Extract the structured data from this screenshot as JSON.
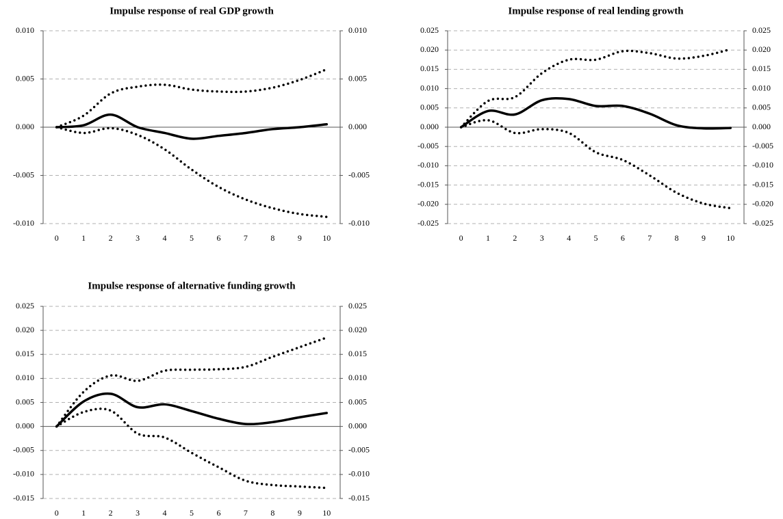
{
  "chart_data": [
    {
      "type": "line",
      "title": "Impulse response of real GDP growth",
      "x": [
        0,
        1,
        2,
        3,
        4,
        5,
        6,
        7,
        8,
        9,
        10
      ],
      "xlim": [
        -0.5,
        10.5
      ],
      "xticks": [
        0,
        1,
        2,
        3,
        4,
        5,
        6,
        7,
        8,
        9,
        10
      ],
      "ylim": [
        -0.01,
        0.01
      ],
      "yticks": [
        {
          "value": -0.01,
          "label": "-0.010"
        },
        {
          "value": -0.005,
          "label": "-0.005"
        },
        {
          "value": 0,
          "label": "0.000"
        },
        {
          "value": 0.005,
          "label": "0.005"
        },
        {
          "value": 0.01,
          "label": "0.010"
        }
      ],
      "y2lim": [
        -0.01,
        0.01
      ],
      "y2ticks": [
        {
          "value": -0.01,
          "label": "-0.010"
        },
        {
          "value": -0.005,
          "label": "-0.005"
        },
        {
          "value": 0,
          "label": "0.000"
        },
        {
          "value": 0.005,
          "label": "0.005"
        },
        {
          "value": 0.01,
          "label": "0.010"
        }
      ],
      "grid": true,
      "series": [
        {
          "color": "#000000",
          "style": "solid",
          "values": [
            0,
            0.0002,
            0.0013,
            0.0,
            -0.0006,
            -0.0012,
            -0.0009,
            -0.0006,
            -0.0002,
            0.0,
            0.0003
          ]
        },
        {
          "color": "#000000",
          "style": "dotted",
          "values": [
            0,
            0.0012,
            0.0035,
            0.0042,
            0.0044,
            0.0039,
            0.0037,
            0.0037,
            0.0041,
            0.0049,
            0.006
          ]
        },
        {
          "color": "#000000",
          "style": "dotted",
          "values": [
            0,
            -0.0006,
            -0.0001,
            -0.0008,
            -0.0023,
            -0.0044,
            -0.0062,
            -0.0075,
            -0.0084,
            -0.009,
            -0.0093
          ]
        }
      ]
    },
    {
      "type": "line",
      "title": "Impulse response of real lending growth",
      "x": [
        0,
        1,
        2,
        3,
        4,
        5,
        6,
        7,
        8,
        9,
        10
      ],
      "xlim": [
        -0.5,
        10.5
      ],
      "xticks": [
        0,
        1,
        2,
        3,
        4,
        5,
        6,
        7,
        8,
        9,
        10
      ],
      "ylim": [
        -0.025,
        0.025
      ],
      "yticks": [
        {
          "value": -0.025,
          "label": "-0.025"
        },
        {
          "value": -0.02,
          "label": "-0.020"
        },
        {
          "value": -0.015,
          "label": "-0.015"
        },
        {
          "value": -0.01,
          "label": "-0.010"
        },
        {
          "value": -0.005,
          "label": "-0.005"
        },
        {
          "value": 0,
          "label": "0.000"
        },
        {
          "value": 0.005,
          "label": "0.005"
        },
        {
          "value": 0.01,
          "label": "0.010"
        },
        {
          "value": 0.015,
          "label": "0.015"
        },
        {
          "value": 0.02,
          "label": "0.020"
        },
        {
          "value": 0.025,
          "label": "0.025"
        }
      ],
      "y2lim": [
        -0.025,
        0.025
      ],
      "y2ticks": [
        {
          "value": -0.025,
          "label": "-0.025"
        },
        {
          "value": -0.02,
          "label": "-0.020"
        },
        {
          "value": -0.015,
          "label": "-0.015"
        },
        {
          "value": -0.01,
          "label": "-0.010"
        },
        {
          "value": -0.005,
          "label": "-0.005"
        },
        {
          "value": 0,
          "label": "0.000"
        },
        {
          "value": 0.005,
          "label": "0.005"
        },
        {
          "value": 0.01,
          "label": "0.010"
        },
        {
          "value": 0.015,
          "label": "0.015"
        },
        {
          "value": 0.02,
          "label": "0.020"
        },
        {
          "value": 0.025,
          "label": "0.025"
        }
      ],
      "grid": true,
      "series": [
        {
          "color": "#000000",
          "style": "solid",
          "values": [
            0,
            0.0042,
            0.0033,
            0.007,
            0.0073,
            0.0055,
            0.0055,
            0.0035,
            0.0005,
            -0.0003,
            -0.0002
          ]
        },
        {
          "color": "#000000",
          "style": "dotted",
          "values": [
            0,
            0.0068,
            0.0078,
            0.014,
            0.0175,
            0.0175,
            0.0197,
            0.0192,
            0.0178,
            0.0185,
            0.0202
          ]
        },
        {
          "color": "#000000",
          "style": "dotted",
          "values": [
            0,
            0.0018,
            -0.0015,
            -0.0005,
            -0.0015,
            -0.0065,
            -0.0085,
            -0.0125,
            -0.017,
            -0.0198,
            -0.021
          ]
        }
      ]
    },
    {
      "type": "line",
      "title": "Impulse response of alternative funding growth",
      "x": [
        0,
        1,
        2,
        3,
        4,
        5,
        6,
        7,
        8,
        9,
        10
      ],
      "xlim": [
        -0.5,
        10.5
      ],
      "xticks": [
        0,
        1,
        2,
        3,
        4,
        5,
        6,
        7,
        8,
        9,
        10
      ],
      "ylim": [
        -0.015,
        0.025
      ],
      "yticks": [
        {
          "value": -0.015,
          "label": "-0.015"
        },
        {
          "value": -0.01,
          "label": "-0.010"
        },
        {
          "value": -0.005,
          "label": "-0.005"
        },
        {
          "value": 0,
          "label": "0.000"
        },
        {
          "value": 0.005,
          "label": "0.005"
        },
        {
          "value": 0.01,
          "label": "0.010"
        },
        {
          "value": 0.015,
          "label": "0.015"
        },
        {
          "value": 0.02,
          "label": "0.020"
        },
        {
          "value": 0.025,
          "label": "0.025"
        }
      ],
      "y2lim": [
        -0.015,
        0.025
      ],
      "y2ticks": [
        {
          "value": -0.015,
          "label": "-0.015"
        },
        {
          "value": -0.01,
          "label": "-0.010"
        },
        {
          "value": -0.005,
          "label": "-0.005"
        },
        {
          "value": 0,
          "label": "0.000"
        },
        {
          "value": 0.005,
          "label": "0.005"
        },
        {
          "value": 0.01,
          "label": "0.010"
        },
        {
          "value": 0.015,
          "label": "0.015"
        },
        {
          "value": 0.02,
          "label": "0.020"
        },
        {
          "value": 0.025,
          "label": "0.025"
        }
      ],
      "grid": true,
      "series": [
        {
          "color": "#000000",
          "style": "solid",
          "values": [
            0,
            0.0052,
            0.0068,
            0.004,
            0.0046,
            0.0032,
            0.0016,
            0.0005,
            0.0009,
            0.0019,
            0.0028
          ]
        },
        {
          "color": "#000000",
          "style": "dotted",
          "values": [
            0,
            0.0072,
            0.0106,
            0.0095,
            0.0116,
            0.0118,
            0.0119,
            0.0124,
            0.0145,
            0.0165,
            0.0185
          ]
        },
        {
          "color": "#000000",
          "style": "dotted",
          "values": [
            0,
            0.003,
            0.0033,
            -0.0015,
            -0.0023,
            -0.0055,
            -0.0085,
            -0.0113,
            -0.0122,
            -0.0125,
            -0.0128
          ]
        }
      ]
    }
  ]
}
